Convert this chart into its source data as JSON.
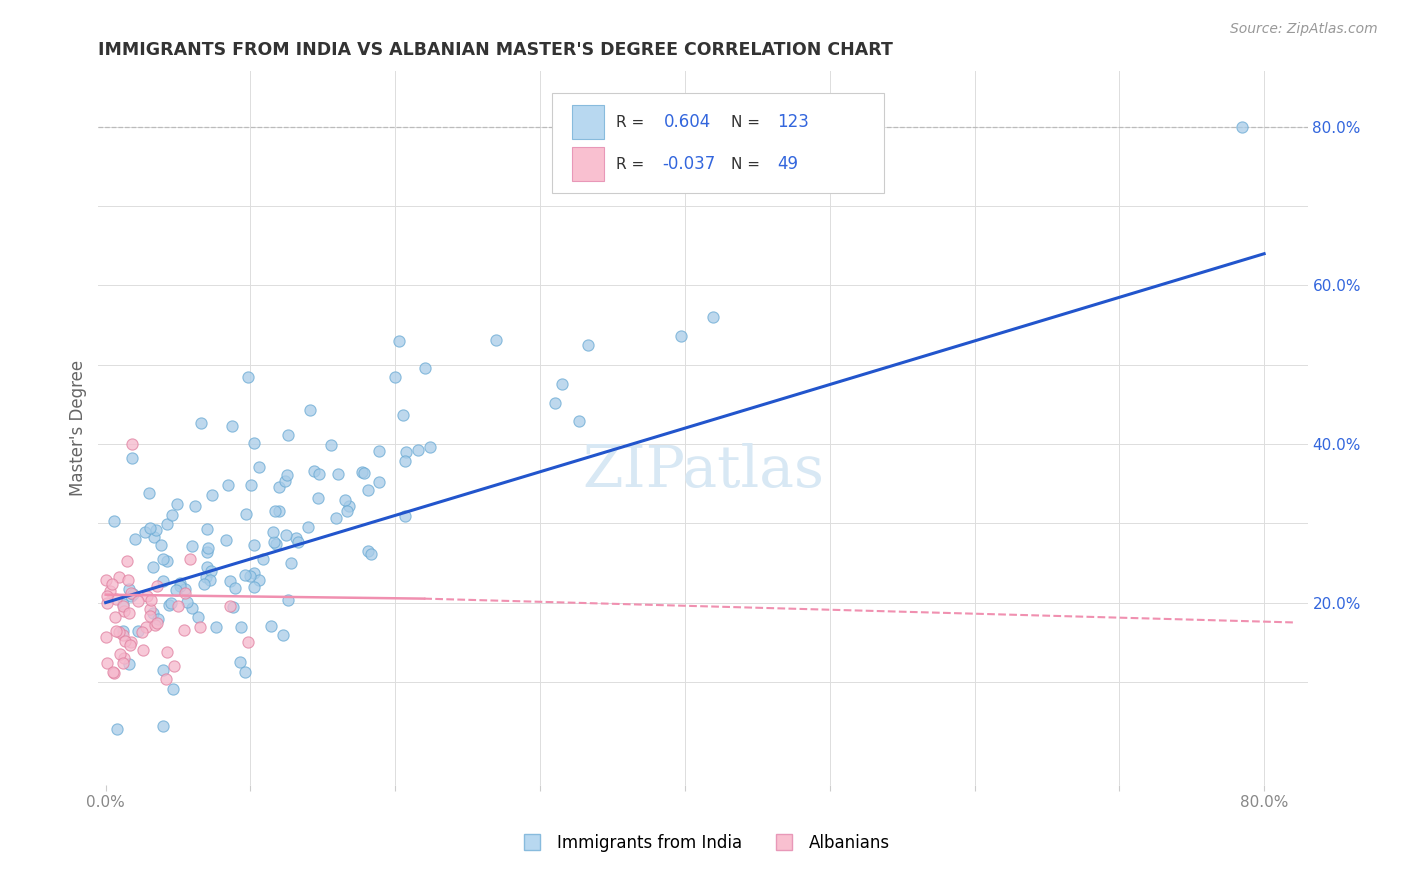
{
  "title": "IMMIGRANTS FROM INDIA VS ALBANIAN MASTER'S DEGREE CORRELATION CHART",
  "ylabel": "Master's Degree",
  "source_text": "Source: ZipAtlas.com",
  "legend_labels": [
    "Immigrants from India",
    "Albanians"
  ],
  "legend_r1": "0.604",
  "legend_n1": "123",
  "legend_r2": "-0.037",
  "legend_n2": "49",
  "blue_scatter_color": "#a8cce8",
  "blue_scatter_edge": "#6aaad4",
  "pink_scatter_color": "#f5b8cc",
  "pink_scatter_edge": "#e080a0",
  "blue_line_color": "#2255cc",
  "pink_line_color": "#f090b0",
  "legend_blue_fill": "#b8d8f0",
  "legend_pink_fill": "#f9c0d0",
  "watermark_color": "#d8e8f4",
  "text_blue": "#3366dd",
  "text_dark": "#333333",
  "grid_color": "#dddddd",
  "axis_tick_color": "#888888",
  "seed_blue": 42,
  "seed_pink": 7,
  "n_blue": 123,
  "n_pink": 49
}
